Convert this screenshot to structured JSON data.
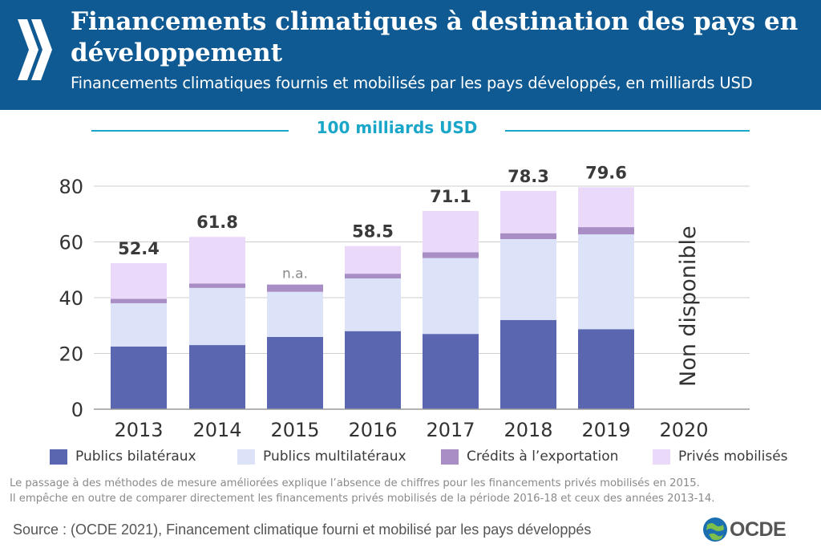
{
  "header": {
    "title": "Financements climatiques à destination des pays en développement",
    "subtitle": "Financements climatiques fournis et mobilisés par les pays développés, en milliards USD"
  },
  "target": {
    "label": "100 milliards USD"
  },
  "chart_data": {
    "type": "bar",
    "stacked": true,
    "categories": [
      "2013",
      "2014",
      "2015",
      "2016",
      "2017",
      "2018",
      "2019",
      "2020"
    ],
    "series": [
      {
        "name": "Publics bilatéraux",
        "color": "#5b66b0",
        "values": [
          22.5,
          23,
          25.9,
          28,
          27,
          32,
          28.7,
          null
        ]
      },
      {
        "name": "Publics multilatéraux",
        "color": "#dce3f8",
        "values": [
          15.5,
          20.5,
          16.2,
          18.9,
          27.2,
          29,
          34,
          null
        ]
      },
      {
        "name": "Crédits à l’exportation",
        "color": "#a98ec6",
        "values": [
          1.6,
          1.6,
          2.6,
          1.7,
          2.1,
          2.1,
          2.6,
          null
        ]
      },
      {
        "name": "Privés mobilisés",
        "color": "#ead9f8",
        "values": [
          12.8,
          16.7,
          null,
          9.9,
          14.8,
          15.2,
          14.3,
          null
        ]
      }
    ],
    "totals": [
      "52.4",
      "61.8",
      "n.a.",
      "58.5",
      "71.1",
      "78.3",
      "79.6",
      ""
    ],
    "yticks": [
      0,
      20,
      40,
      60,
      80
    ],
    "ylim": [
      0,
      85
    ],
    "grid": true,
    "annotation": "Non disponible",
    "legend_position": "bottom"
  },
  "legend": [
    {
      "label": "Publics bilatéraux",
      "color": "#5b66b0"
    },
    {
      "label": "Publics multilatéraux",
      "color": "#dce3f8"
    },
    {
      "label": "Crédits à l’exportation",
      "color": "#a98ec6"
    },
    {
      "label": "Privés mobilisés",
      "color": "#ead9f8"
    }
  ],
  "note": {
    "line1": "Le passage à des méthodes de mesure améliorées explique l’absence de chiffres pour les financements privés mobilisés en 2015.",
    "line2": "Il empêche en outre de comparer directement les financements privés mobilisés de la période 2016-18 et ceux des années 2013-14."
  },
  "source": "Source : (OCDE 2021), Financement climatique fourni et mobilisé par les pays développés",
  "logo": {
    "text": "OCDE",
    "icon": "globe-icon"
  }
}
